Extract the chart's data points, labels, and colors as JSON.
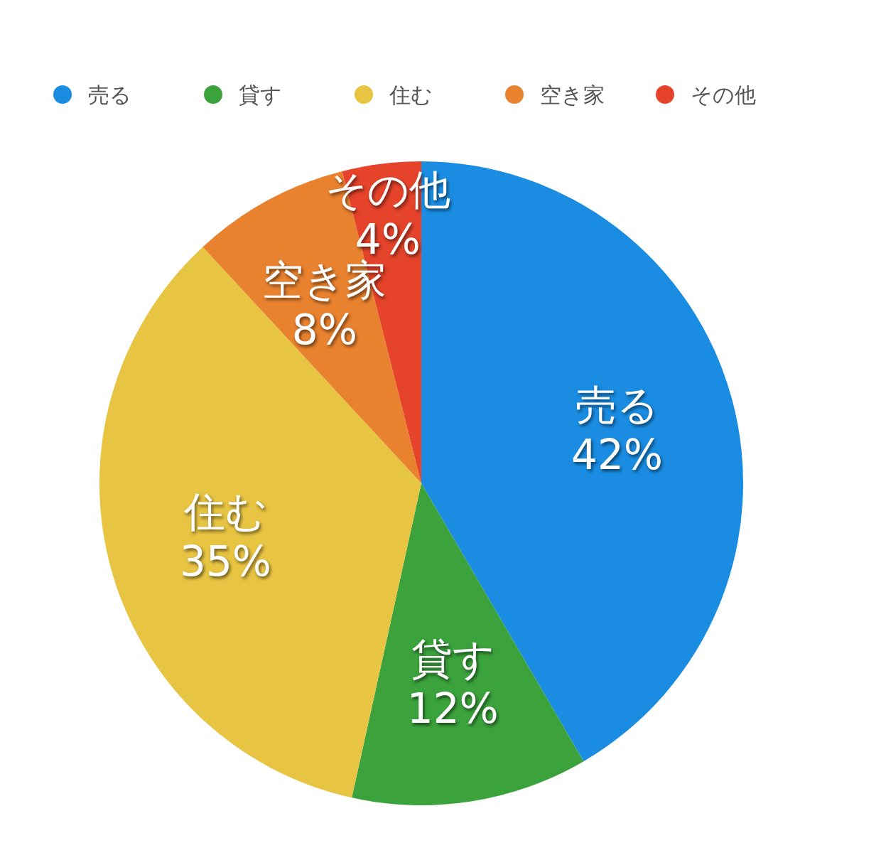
{
  "chart_data": {
    "type": "pie",
    "categories": [
      "売る",
      "貸す",
      "住む",
      "空き家",
      "その他"
    ],
    "values": [
      42,
      12,
      35,
      8,
      4
    ],
    "colors": [
      "#1a8de3",
      "#3ba23c",
      "#e8c443",
      "#e9822f",
      "#e5432a"
    ],
    "legend": "top left",
    "value_labels": [
      "42%",
      "12%",
      "35%",
      "8%",
      "4%"
    ]
  }
}
